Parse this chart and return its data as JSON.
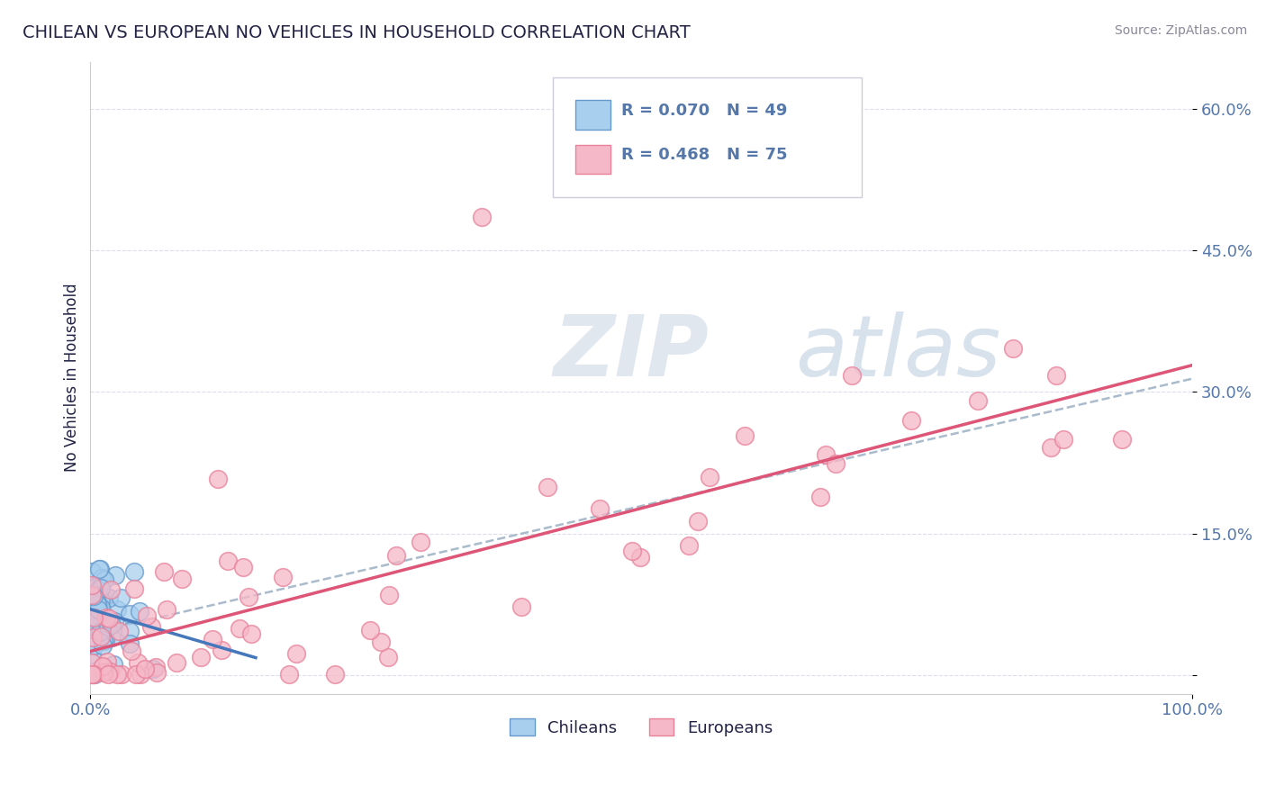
{
  "title": "CHILEAN VS EUROPEAN NO VEHICLES IN HOUSEHOLD CORRELATION CHART",
  "source": "Source: ZipAtlas.com",
  "ylabel": "No Vehicles in Household",
  "xlim": [
    0.0,
    1.0
  ],
  "ylim": [
    -0.02,
    0.65
  ],
  "yticks": [
    0.0,
    0.15,
    0.3,
    0.45,
    0.6
  ],
  "ytick_labels": [
    "",
    "15.0%",
    "30.0%",
    "45.0%",
    "60.0%"
  ],
  "chilean_R": 0.07,
  "chilean_N": 49,
  "european_R": 0.468,
  "european_N": 75,
  "chilean_color": "#A8CFEE",
  "european_color": "#F5B8C8",
  "chilean_edge_color": "#6699CC",
  "european_edge_color": "#E88099",
  "chilean_line_color": "#4477BB",
  "european_line_color": "#DD5577",
  "dash_line_color": "#AABBCC",
  "background_color": "#FFFFFF",
  "grid_color": "#DDDDEE",
  "title_color": "#222244",
  "tick_color": "#5577AA",
  "legend_border_color": "#CCCCDD"
}
